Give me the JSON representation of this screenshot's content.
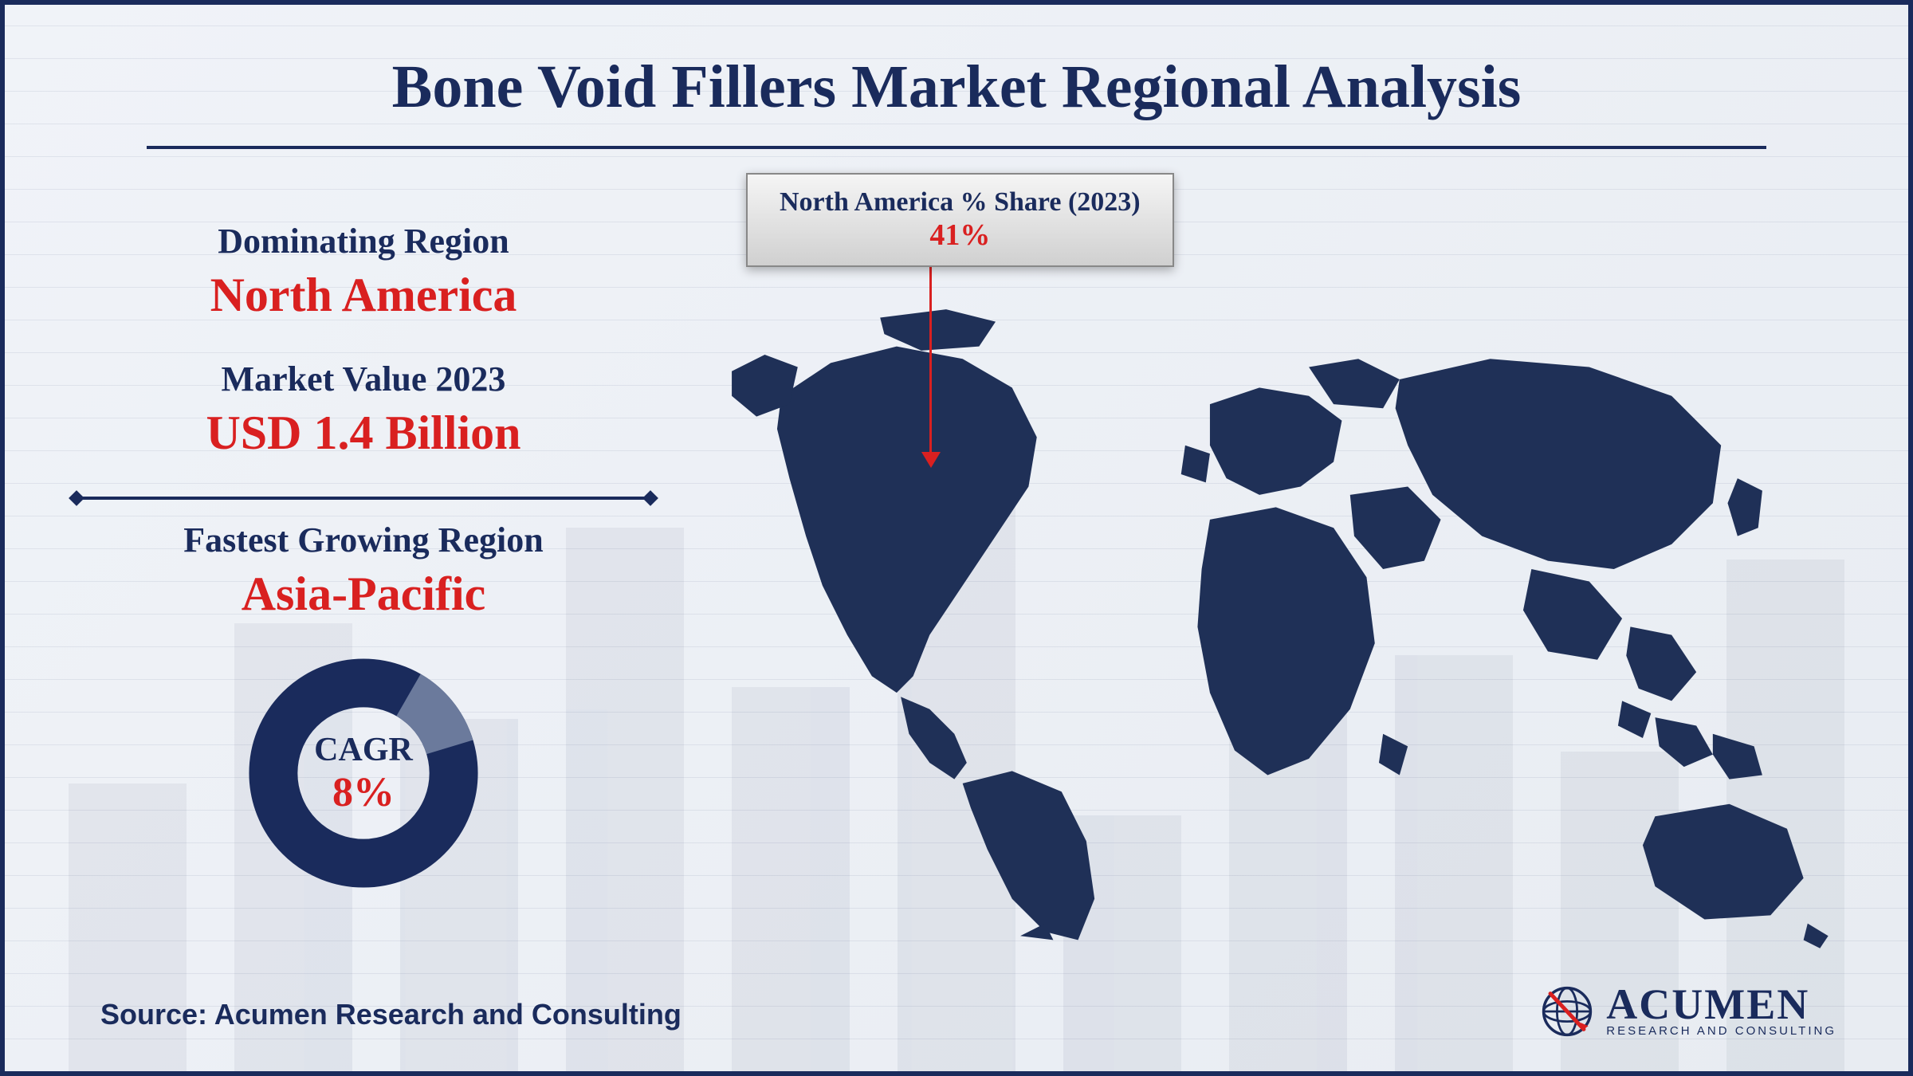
{
  "title": "Bone Void Fillers Market Regional Analysis",
  "stats": {
    "dominating_label": "Dominating Region",
    "dominating_value": "North America",
    "market_label": "Market Value 2023",
    "market_value": "USD 1.4 Billion",
    "fastest_label": "Fastest Growing Region",
    "fastest_value": "Asia-Pacific"
  },
  "cagr": {
    "label": "CAGR",
    "value": "8%",
    "ring_color_dark": "#1a2b5c",
    "ring_color_light": "#6b7a9c",
    "ring_stroke_width": 42,
    "gap_percent": 12
  },
  "callout": {
    "label": "North America % Share (2023)",
    "value": "41%"
  },
  "colors": {
    "primary": "#1a2b5c",
    "accent": "#d92020",
    "map_fill": "#1f3057",
    "background": "#f0f3f8"
  },
  "typography": {
    "title_fontsize": 76,
    "stat_label_fontsize": 44,
    "stat_value_fontsize": 60,
    "font_family": "Georgia, Times New Roman, serif"
  },
  "source": "Source: Acumen Research and Consulting",
  "logo": {
    "main": "ACUMEN",
    "sub": "RESEARCH AND CONSULTING"
  },
  "bg_bar_heights": [
    45,
    70,
    55,
    85,
    60,
    95,
    40,
    75,
    65,
    50,
    80
  ]
}
